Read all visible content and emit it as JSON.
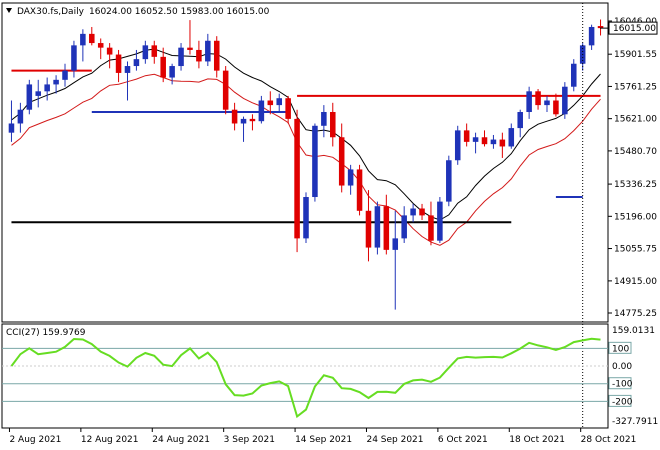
{
  "header": {
    "symbol": "DAX30.fs,Daily",
    "ohlc": "16024.00 16052.50 15983.00 16015.00",
    "arrow_icon": "triangle-down-icon"
  },
  "colors": {
    "bull": "#1f33b8",
    "bear": "#e00000",
    "upper_ma": "#000000",
    "lower_ma": "#d31a1a",
    "hline_red": "#e00000",
    "hline_blue": "#1f33b8",
    "hline_black": "#000000",
    "cci": "#66dd22",
    "price_tag_bg": "#ffffff",
    "grid": "#7aa7a7",
    "frame": "#000000"
  },
  "chart_data": [
    {
      "type": "candlestick",
      "title": "DAX30.fs,Daily",
      "y_ticks": [
        "16046.00",
        "15901.55",
        "15761.25",
        "15621.00",
        "15480.70",
        "15336.25",
        "15196.00",
        "15055.75",
        "14915.00",
        "14775.25"
      ],
      "ylim": [
        14775.25,
        16046.0
      ],
      "current_price_label": "16015.00",
      "current_price": 16015.0,
      "x_tick_labels": [
        "2 Aug 2021",
        "12 Aug 2021",
        "24 Aug 2021",
        "3 Sep 2021",
        "14 Sep 2021",
        "24 Sep 2021",
        "6 Oct 2021",
        "18 Oct 2021",
        "28 Oct 2021"
      ],
      "x_tick_bar_index": [
        0,
        8,
        16,
        24,
        32,
        40,
        48,
        56,
        64
      ],
      "candles": [
        {
          "o": 15560,
          "h": 15700,
          "l": 15520,
          "c": 15600
        },
        {
          "o": 15600,
          "h": 15690,
          "l": 15560,
          "c": 15660
        },
        {
          "o": 15660,
          "h": 15790,
          "l": 15640,
          "c": 15770
        },
        {
          "o": 15720,
          "h": 15790,
          "l": 15670,
          "c": 15740
        },
        {
          "o": 15740,
          "h": 15800,
          "l": 15700,
          "c": 15770
        },
        {
          "o": 15770,
          "h": 15810,
          "l": 15730,
          "c": 15790
        },
        {
          "o": 15790,
          "h": 15860,
          "l": 15760,
          "c": 15830
        },
        {
          "o": 15830,
          "h": 15960,
          "l": 15800,
          "c": 15940
        },
        {
          "o": 15940,
          "h": 16010,
          "l": 15870,
          "c": 15990
        },
        {
          "o": 15990,
          "h": 16020,
          "l": 15940,
          "c": 15950
        },
        {
          "o": 15950,
          "h": 15970,
          "l": 15880,
          "c": 15930
        },
        {
          "o": 15930,
          "h": 15950,
          "l": 15840,
          "c": 15900
        },
        {
          "o": 15900,
          "h": 15920,
          "l": 15780,
          "c": 15820
        },
        {
          "o": 15820,
          "h": 15870,
          "l": 15700,
          "c": 15850
        },
        {
          "o": 15850,
          "h": 15920,
          "l": 15830,
          "c": 15880
        },
        {
          "o": 15880,
          "h": 15960,
          "l": 15860,
          "c": 15940
        },
        {
          "o": 15940,
          "h": 15960,
          "l": 15860,
          "c": 15890
        },
        {
          "o": 15890,
          "h": 15930,
          "l": 15780,
          "c": 15800
        },
        {
          "o": 15800,
          "h": 15860,
          "l": 15770,
          "c": 15850
        },
        {
          "o": 15850,
          "h": 15950,
          "l": 15830,
          "c": 15930
        },
        {
          "o": 15930,
          "h": 16050,
          "l": 15900,
          "c": 15920
        },
        {
          "o": 15920,
          "h": 15960,
          "l": 15840,
          "c": 15870
        },
        {
          "o": 15870,
          "h": 15990,
          "l": 15850,
          "c": 15960
        },
        {
          "o": 15960,
          "h": 15980,
          "l": 15800,
          "c": 15830
        },
        {
          "o": 15830,
          "h": 15850,
          "l": 15640,
          "c": 15660
        },
        {
          "o": 15660,
          "h": 15690,
          "l": 15570,
          "c": 15600
        },
        {
          "o": 15600,
          "h": 15630,
          "l": 15520,
          "c": 15620
        },
        {
          "o": 15620,
          "h": 15640,
          "l": 15570,
          "c": 15610
        },
        {
          "o": 15610,
          "h": 15720,
          "l": 15600,
          "c": 15700
        },
        {
          "o": 15700,
          "h": 15740,
          "l": 15640,
          "c": 15680
        },
        {
          "o": 15680,
          "h": 15730,
          "l": 15650,
          "c": 15710
        },
        {
          "o": 15710,
          "h": 15720,
          "l": 15600,
          "c": 15620
        },
        {
          "o": 15620,
          "h": 15660,
          "l": 15040,
          "c": 15100
        },
        {
          "o": 15100,
          "h": 15300,
          "l": 15080,
          "c": 15280
        },
        {
          "o": 15280,
          "h": 15600,
          "l": 15260,
          "c": 15590
        },
        {
          "o": 15590,
          "h": 15680,
          "l": 15540,
          "c": 15650
        },
        {
          "o": 15650,
          "h": 15690,
          "l": 15500,
          "c": 15540
        },
        {
          "o": 15540,
          "h": 15600,
          "l": 15300,
          "c": 15330
        },
        {
          "o": 15330,
          "h": 15420,
          "l": 15290,
          "c": 15400
        },
        {
          "o": 15400,
          "h": 15420,
          "l": 15200,
          "c": 15220
        },
        {
          "o": 15220,
          "h": 15310,
          "l": 15000,
          "c": 15060
        },
        {
          "o": 15060,
          "h": 15260,
          "l": 15030,
          "c": 15240
        },
        {
          "o": 15240,
          "h": 15290,
          "l": 15030,
          "c": 15050
        },
        {
          "o": 15050,
          "h": 15220,
          "l": 14790,
          "c": 15100
        },
        {
          "o": 15100,
          "h": 15240,
          "l": 15080,
          "c": 15200
        },
        {
          "o": 15200,
          "h": 15250,
          "l": 15170,
          "c": 15230
        },
        {
          "o": 15230,
          "h": 15250,
          "l": 15180,
          "c": 15200
        },
        {
          "o": 15200,
          "h": 15260,
          "l": 15070,
          "c": 15090
        },
        {
          "o": 15090,
          "h": 15280,
          "l": 15080,
          "c": 15260
        },
        {
          "o": 15260,
          "h": 15460,
          "l": 15240,
          "c": 15440
        },
        {
          "o": 15440,
          "h": 15590,
          "l": 15420,
          "c": 15570
        },
        {
          "o": 15570,
          "h": 15600,
          "l": 15500,
          "c": 15520
        },
        {
          "o": 15520,
          "h": 15560,
          "l": 15470,
          "c": 15540
        },
        {
          "o": 15540,
          "h": 15570,
          "l": 15500,
          "c": 15510
        },
        {
          "o": 15510,
          "h": 15550,
          "l": 15490,
          "c": 15530
        },
        {
          "o": 15530,
          "h": 15560,
          "l": 15450,
          "c": 15500
        },
        {
          "o": 15500,
          "h": 15600,
          "l": 15490,
          "c": 15580
        },
        {
          "o": 15580,
          "h": 15660,
          "l": 15540,
          "c": 15650
        },
        {
          "o": 15650,
          "h": 15760,
          "l": 15620,
          "c": 15740
        },
        {
          "o": 15740,
          "h": 15750,
          "l": 15660,
          "c": 15680
        },
        {
          "o": 15680,
          "h": 15720,
          "l": 15650,
          "c": 15700
        },
        {
          "o": 15700,
          "h": 15730,
          "l": 15630,
          "c": 15640
        },
        {
          "o": 15640,
          "h": 15780,
          "l": 15620,
          "c": 15760
        },
        {
          "o": 15760,
          "h": 15880,
          "l": 15740,
          "c": 15860
        },
        {
          "o": 15860,
          "h": 15950,
          "l": 15830,
          "c": 15940
        },
        {
          "o": 15940,
          "h": 16030,
          "l": 15920,
          "c": 16020
        },
        {
          "o": 16024,
          "h": 16052.5,
          "l": 15983,
          "c": 16015
        }
      ],
      "levels": [
        {
          "color": "red",
          "segments": [
            [
              0,
              9,
              15830
            ],
            [
              32,
              66,
              15720
            ]
          ]
        },
        {
          "color": "blue",
          "segments": [
            [
              9,
              31,
              15650
            ],
            [
              61,
              64,
              15280
            ]
          ]
        },
        {
          "color": "black",
          "segments": [
            [
              0,
              56,
              15170
            ]
          ]
        }
      ]
    },
    {
      "type": "line",
      "title": "CCI(27) 159.9769",
      "label": "CCI(27) 159.9769",
      "y_ticks": [
        "159.0131",
        "100",
        "0.00",
        "-100",
        "-200",
        "-327.7911"
      ],
      "right_axis_label": "159.0131",
      "ylim": [
        -327.7911,
        215
      ],
      "levels": [
        100,
        -100,
        -200
      ]
    }
  ]
}
